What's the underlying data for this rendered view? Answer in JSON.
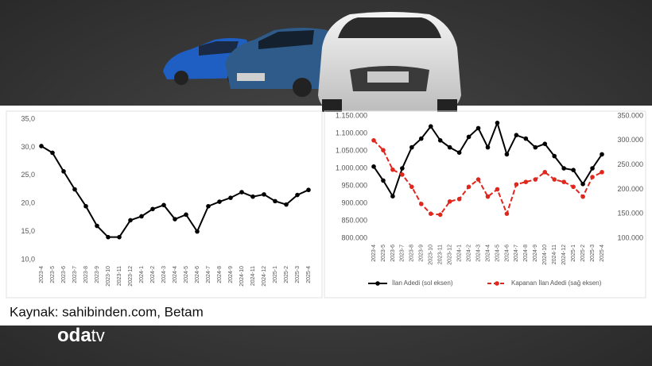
{
  "chart_data": [
    {
      "type": "line",
      "categories": [
        "2023-4",
        "2023-5",
        "2023-6",
        "2023-7",
        "2023-8",
        "2023-9",
        "2023-10",
        "2023-11",
        "2023-12",
        "2024-1",
        "2024-2",
        "2024-3",
        "2024-4",
        "2024-5",
        "2024-6",
        "2024-7",
        "2024-8",
        "2024-9",
        "2024-10",
        "2024-11",
        "2024-12",
        "2025-1",
        "2025-2",
        "2025-3",
        "2025-4"
      ],
      "series": [
        {
          "color": "#000000",
          "values": [
            30.2,
            29,
            25.7,
            22.5,
            19.5,
            16,
            14,
            14,
            17,
            17.7,
            19,
            19.7,
            17.2,
            18,
            15,
            19.5,
            20.3,
            21,
            22,
            21.2,
            21.6,
            20.4,
            19.8,
            21.5,
            22.4
          ]
        }
      ],
      "ylim": [
        10,
        35
      ],
      "yticks": [
        {
          "value": 10,
          "label": "10,0"
        },
        {
          "value": 15,
          "label": "15,0"
        },
        {
          "value": 20,
          "label": "20,0"
        },
        {
          "value": 25,
          "label": "25,0"
        },
        {
          "value": 30,
          "label": "30,0"
        },
        {
          "value": 35,
          "label": "35,0"
        }
      ]
    },
    {
      "type": "line",
      "categories": [
        "2023-4",
        "2023-5",
        "2023-6",
        "2023-7",
        "2023-8",
        "2023-9",
        "2023-10",
        "2023-11",
        "2023-12",
        "2024-1",
        "2024-2",
        "2024-3",
        "2024-4",
        "2024-5",
        "2024-6",
        "2024-7",
        "2024-8",
        "2024-9",
        "2024-10",
        "2024-11",
        "2024-12",
        "2025-1",
        "2025-2",
        "2025-3",
        "2025-4"
      ],
      "series": [
        {
          "name": "İlan Adedi (sol eksen)",
          "color": "#000000",
          "values": [
            1005000,
            965000,
            920000,
            1000000,
            1060000,
            1085000,
            1120000,
            1080000,
            1060000,
            1045000,
            1090000,
            1115000,
            1060000,
            1130000,
            1040000,
            1095000,
            1085000,
            1060000,
            1070000,
            1035000,
            1000000,
            995000,
            955000,
            1000000,
            1040000
          ]
        },
        {
          "name": "Kapanan İlan Adedi (sağ eksen)",
          "color": "#e0261d",
          "dashed": true,
          "axis": "y2",
          "values": [
            300000,
            280000,
            240000,
            230000,
            205000,
            170000,
            150000,
            148000,
            175000,
            180000,
            205000,
            220000,
            185000,
            200000,
            150000,
            210000,
            215000,
            220000,
            235000,
            220000,
            215000,
            205000,
            185000,
            225000,
            235000
          ]
        }
      ],
      "ylim": [
        800000,
        1150000
      ],
      "yticks": [
        {
          "value": 800000,
          "label": "800.000"
        },
        {
          "value": 850000,
          "label": "850.000"
        },
        {
          "value": 900000,
          "label": "900.000"
        },
        {
          "value": 950000,
          "label": "950.000"
        },
        {
          "value": 1000000,
          "label": "1.000.000"
        },
        {
          "value": 1050000,
          "label": "1.050.000"
        },
        {
          "value": 1100000,
          "label": "1.100.000"
        },
        {
          "value": 1150000,
          "label": "1.150.000"
        }
      ],
      "y2lim": [
        100000,
        350000
      ],
      "y2ticks": [
        {
          "value": 100000,
          "label": "100.000"
        },
        {
          "value": 150000,
          "label": "150.000"
        },
        {
          "value": 200000,
          "label": "200.000"
        },
        {
          "value": 250000,
          "label": "250.000"
        },
        {
          "value": 300000,
          "label": "300.000"
        },
        {
          "value": 350000,
          "label": "350.000"
        }
      ],
      "legend": "bottom"
    }
  ],
  "source": "Kaynak: sahibinden.com, Betam",
  "logo": {
    "bold": "oda",
    "light": "tv"
  }
}
